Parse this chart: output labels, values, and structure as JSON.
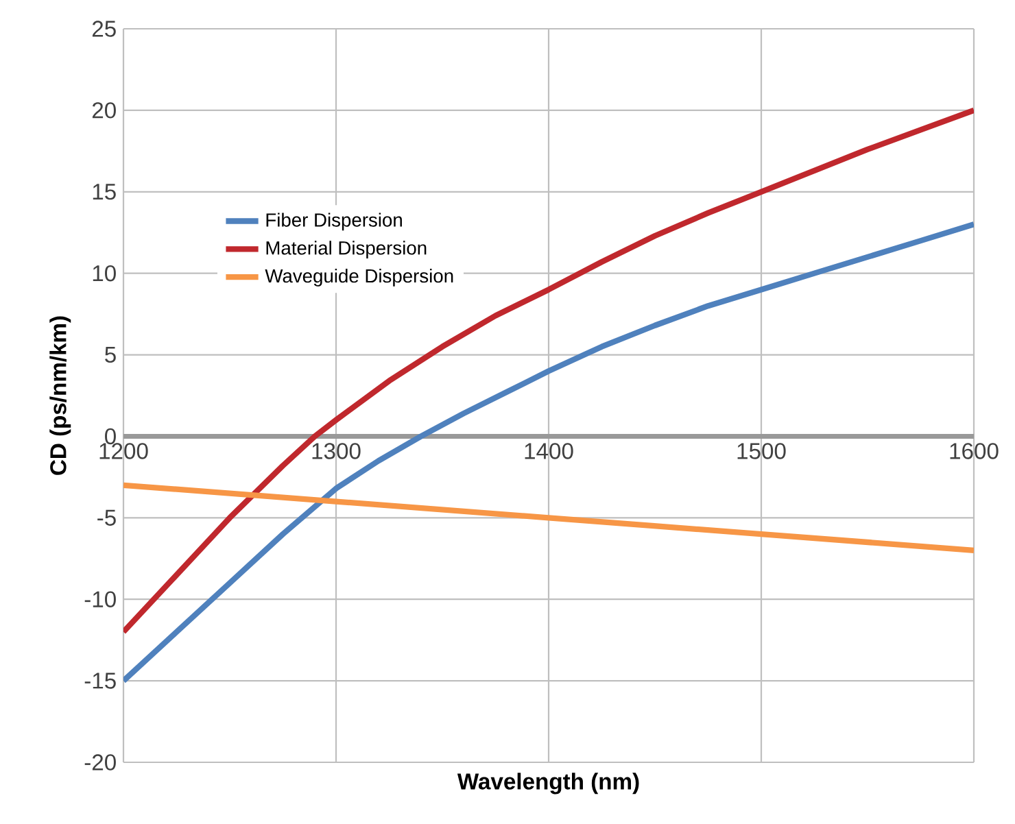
{
  "chart_data": {
    "type": "line",
    "xlabel": "Wavelength (nm)",
    "ylabel": "CD (ps/nm/km)",
    "xlim": [
      1200,
      1600
    ],
    "ylim": [
      -20,
      25
    ],
    "xticks": [
      1200,
      1300,
      1400,
      1500,
      1600
    ],
    "yticks": [
      -20,
      -15,
      -10,
      -5,
      0,
      5,
      10,
      15,
      20,
      25
    ],
    "grid": true,
    "legend": "top left",
    "marker": "none",
    "line_style": "solid",
    "series": [
      {
        "name": "Fiber Dispersion",
        "color": "#4f81bd",
        "x": [
          1200,
          1225,
          1250,
          1275,
          1300,
          1320,
          1340,
          1360,
          1380,
          1400,
          1425,
          1450,
          1475,
          1500,
          1525,
          1550,
          1575,
          1600
        ],
        "values": [
          -15,
          -12,
          -9,
          -6,
          -3.2,
          -1.5,
          0,
          1.4,
          2.7,
          4,
          5.5,
          6.8,
          8,
          9,
          10,
          11,
          12,
          13
        ]
      },
      {
        "name": "Material Dispersion",
        "color": "#c0282d",
        "x": [
          1200,
          1225,
          1250,
          1275,
          1290,
          1300,
          1325,
          1350,
          1375,
          1400,
          1425,
          1450,
          1475,
          1500,
          1525,
          1550,
          1575,
          1600
        ],
        "values": [
          -12,
          -8.5,
          -5,
          -1.8,
          0,
          1,
          3.4,
          5.5,
          7.4,
          9,
          10.7,
          12.3,
          13.7,
          15,
          16.3,
          17.6,
          18.8,
          20
        ]
      },
      {
        "name": "Waveguide Dispersion",
        "color": "#f79646",
        "x": [
          1200,
          1300,
          1400,
          1500,
          1600
        ],
        "values": [
          -3,
          -4,
          -5,
          -6,
          -7
        ]
      }
    ]
  }
}
